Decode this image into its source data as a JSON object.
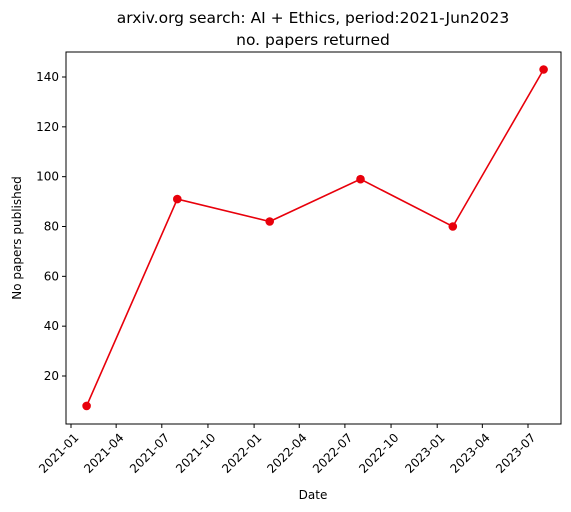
{
  "chart_data": {
    "type": "line",
    "title_line1": "arxiv.org search: AI + Ethics, period:2021-Jun2023",
    "title_line2": "no. papers returned",
    "xlabel": "Date",
    "ylabel": "No papers published",
    "x_ticks": [
      "2021-01",
      "2021-04",
      "2021-07",
      "2021-10",
      "2022-01",
      "2022-04",
      "2022-07",
      "2022-10",
      "2023-01",
      "2023-04",
      "2023-07"
    ],
    "y_ticks": [
      20,
      40,
      60,
      80,
      100,
      120,
      140
    ],
    "series": [
      {
        "color": "#e8000b",
        "marker": "circle",
        "x": [
          "2021-02-01",
          "2021-08-01",
          "2022-02-01",
          "2022-08-01",
          "2023-02-01",
          "2023-08-01"
        ],
        "y": [
          8,
          91,
          82,
          99,
          80,
          143
        ]
      }
    ],
    "grid": false,
    "legend": "none"
  }
}
